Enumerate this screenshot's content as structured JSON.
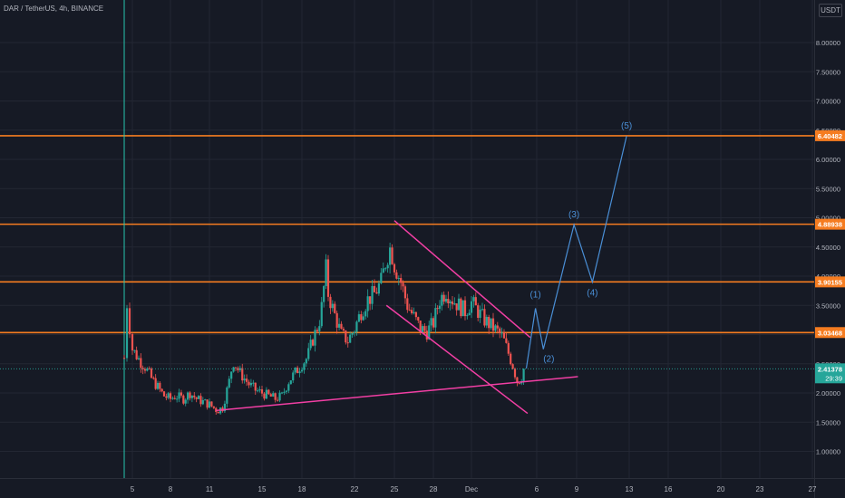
{
  "header": {
    "title": "DAR / TetherUS, 4h, BINANCE",
    "currency": "USDT"
  },
  "theme": {
    "background": "#161a25",
    "grid": "#232733",
    "axis_text": "#b2b5be",
    "up": "#26a69a",
    "down": "#ef5350",
    "level_line": "#f57c20",
    "trend_line": "#f23fa4",
    "wave": "#4a8fd6",
    "price_badge": "#26a69a"
  },
  "chart_data": {
    "type": "candlestick",
    "symbol": "DAR / TetherUS",
    "timeframe": "4h",
    "exchange": "BINANCE",
    "y_axis": {
      "ticks": [
        1.0,
        1.5,
        2.0,
        2.5,
        3.0,
        3.5,
        4.0,
        4.5,
        5.0,
        5.5,
        6.0,
        6.5,
        7.0,
        7.5,
        8.0
      ],
      "tick_labels": [
        "1.00000",
        "1.50000",
        "2.00000",
        "2.50000",
        "3.00000",
        "3.50000",
        "4.00000",
        "4.50000",
        "5.00000",
        "5.50000",
        "6.00000",
        "6.50000",
        "7.00000",
        "7.50000",
        "8.00000"
      ],
      "range": [
        0.5,
        8.55
      ]
    },
    "x_axis": {
      "ticks": [
        {
          "day": 5,
          "label": "5"
        },
        {
          "day": 8,
          "label": "8"
        },
        {
          "day": 11,
          "label": "11"
        },
        {
          "day": 15,
          "label": "15"
        },
        {
          "day": 18,
          "label": "18"
        },
        {
          "day": 22,
          "label": "22"
        },
        {
          "day": 25,
          "label": "25"
        },
        {
          "day": 28,
          "label": "28"
        },
        {
          "day": 31,
          "label": "Dec"
        },
        {
          "day": 36,
          "label": "6"
        },
        {
          "day": 39,
          "label": "9"
        },
        {
          "day": 43,
          "label": "13"
        },
        {
          "day": 46,
          "label": "16"
        },
        {
          "day": 50,
          "label": "20"
        },
        {
          "day": 53,
          "label": "23"
        },
        {
          "day": 57,
          "label": "27"
        }
      ]
    },
    "levels": [
      {
        "value": 6.40482,
        "label": "6.40482"
      },
      {
        "value": 4.88938,
        "label": "4.88938"
      },
      {
        "value": 3.90155,
        "label": "3.90155"
      },
      {
        "value": 3.03468,
        "label": "3.03468"
      }
    ],
    "current_price": {
      "value": 2.41378,
      "label": "2.41378",
      "countdown": "29:39"
    },
    "vertical_marker_day": 4.5,
    "candle_path": [
      [
        4.5,
        2.6
      ],
      [
        4.6,
        3.7
      ],
      [
        4.8,
        3.2
      ],
      [
        5.0,
        2.75
      ],
      [
        5.3,
        2.65
      ],
      [
        5.6,
        2.55
      ],
      [
        6.0,
        2.45
      ],
      [
        6.5,
        2.25
      ],
      [
        7.0,
        2.1
      ],
      [
        7.5,
        1.95
      ],
      [
        8.0,
        1.9
      ],
      [
        8.4,
        1.95
      ],
      [
        9.0,
        1.9
      ],
      [
        9.5,
        2.0
      ],
      [
        10.0,
        1.9
      ],
      [
        10.5,
        1.85
      ],
      [
        11.0,
        1.8
      ],
      [
        11.6,
        1.7
      ],
      [
        12.0,
        1.75
      ],
      [
        12.5,
        2.2
      ],
      [
        12.8,
        2.55
      ],
      [
        13.3,
        2.35
      ],
      [
        14.0,
        2.15
      ],
      [
        14.5,
        2.05
      ],
      [
        15.0,
        2.0
      ],
      [
        15.5,
        1.95
      ],
      [
        16.0,
        1.9
      ],
      [
        16.5,
        1.95
      ],
      [
        17.0,
        2.2
      ],
      [
        17.5,
        2.35
      ],
      [
        18.0,
        2.5
      ],
      [
        18.4,
        2.6
      ],
      [
        18.8,
        2.9
      ],
      [
        19.3,
        3.2
      ],
      [
        19.6,
        3.6
      ],
      [
        19.8,
        4.2
      ],
      [
        20.0,
        3.7
      ],
      [
        20.4,
        3.4
      ],
      [
        21.0,
        3.0
      ],
      [
        21.5,
        2.9
      ],
      [
        22.0,
        3.1
      ],
      [
        22.5,
        3.4
      ],
      [
        23.0,
        3.6
      ],
      [
        23.5,
        3.7
      ],
      [
        24.0,
        3.9
      ],
      [
        24.4,
        4.3
      ],
      [
        24.7,
        4.5
      ],
      [
        25.0,
        4.2
      ],
      [
        25.5,
        3.9
      ],
      [
        26.0,
        3.5
      ],
      [
        26.5,
        3.3
      ],
      [
        27.0,
        3.1
      ],
      [
        27.5,
        3.05
      ],
      [
        28.0,
        3.2
      ],
      [
        28.5,
        3.6
      ],
      [
        29.0,
        3.75
      ],
      [
        29.5,
        3.6
      ],
      [
        30.0,
        3.5
      ],
      [
        30.5,
        3.4
      ],
      [
        31.0,
        3.55
      ],
      [
        31.5,
        3.4
      ],
      [
        32.0,
        3.25
      ],
      [
        32.5,
        3.15
      ],
      [
        33.0,
        3.05
      ],
      [
        33.4,
        2.95
      ],
      [
        33.8,
        2.7
      ],
      [
        34.2,
        2.45
      ],
      [
        34.5,
        2.2
      ],
      [
        34.8,
        2.25
      ],
      [
        35.1,
        2.45
      ]
    ],
    "drawings": {
      "channel_upper": [
        [
          25.0,
          4.95
        ],
        [
          35.5,
          2.95
        ]
      ],
      "channel_lower": [
        [
          24.4,
          3.5
        ],
        [
          35.3,
          1.65
        ]
      ],
      "support_line": [
        [
          11.5,
          1.7
        ],
        [
          39.1,
          2.28
        ]
      ],
      "wave_path": [
        [
          35.2,
          2.42
        ],
        [
          35.9,
          3.45
        ],
        [
          36.5,
          2.75
        ],
        [
          38.8,
          4.88
        ],
        [
          40.2,
          3.9
        ],
        [
          42.8,
          6.4
        ]
      ],
      "wave_labels": [
        {
          "at": [
            35.9,
            3.45
          ],
          "text": "(1)"
        },
        {
          "at": [
            36.5,
            2.75
          ],
          "text": "(2)"
        },
        {
          "at": [
            38.8,
            4.88
          ],
          "text": "(3)"
        },
        {
          "at": [
            40.2,
            3.9
          ],
          "text": "(4)"
        },
        {
          "at": [
            42.8,
            6.4
          ],
          "text": "(5)"
        }
      ]
    }
  }
}
